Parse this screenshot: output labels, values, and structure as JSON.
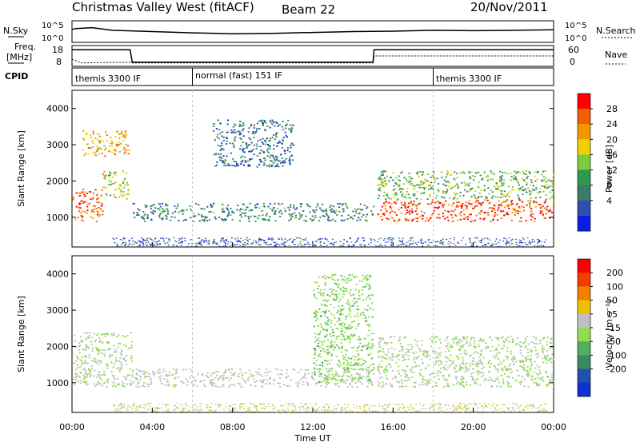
{
  "header": {
    "site": "Christmas Valley West (fitACF)",
    "beam": "Beam 22",
    "date": "20/Nov/2011"
  },
  "summary": {
    "nsky_label": "N.Sky",
    "nsearch_label": "N.Search",
    "freq_label_line1": "Freq.",
    "freq_label_line2": "[MHz]",
    "nave_label": "Nave",
    "cpid_label": "CPID",
    "noise_ticks": [
      "10^5",
      "10^0"
    ],
    "noise_ticks_right": [
      "10^5",
      "10^0"
    ],
    "freq_ticks": [
      "18",
      "8"
    ],
    "nave_ticks": [
      "60",
      "0"
    ],
    "cpid_segments": [
      {
        "label": "themis 3300 IF",
        "start_hour": 0
      },
      {
        "label": "normal (fast) 151 IF",
        "start_hour": 6
      },
      {
        "label": "themis 3300 IF",
        "start_hour": 18
      }
    ],
    "noise_series": [
      {
        "hour": 0.0,
        "log": 3.0
      },
      {
        "hour": 0.2,
        "log": 3.2
      },
      {
        "hour": 1.0,
        "log": 3.4
      },
      {
        "hour": 2.0,
        "log": 2.8
      },
      {
        "hour": 4.0,
        "log": 2.5
      },
      {
        "hour": 6.0,
        "log": 2.2
      },
      {
        "hour": 8.0,
        "log": 2.0
      },
      {
        "hour": 10.0,
        "log": 2.1
      },
      {
        "hour": 12.0,
        "log": 2.3
      },
      {
        "hour": 14.0,
        "log": 2.5
      },
      {
        "hour": 16.0,
        "log": 2.6
      },
      {
        "hour": 18.0,
        "log": 2.8
      },
      {
        "hour": 20.0,
        "log": 2.7
      },
      {
        "hour": 22.0,
        "log": 2.8
      },
      {
        "hour": 24.0,
        "log": 2.9
      }
    ],
    "freq_series": [
      {
        "hour": 0.0,
        "mhz": 16
      },
      {
        "hour": 2.9,
        "mhz": 16
      },
      {
        "hour": 3.0,
        "mhz": 10
      },
      {
        "hour": 15.0,
        "mhz": 10
      },
      {
        "hour": 15.05,
        "mhz": 16
      },
      {
        "hour": 24.0,
        "mhz": 16
      }
    ],
    "nave_series": [
      {
        "hour": 0.0,
        "n": 20
      },
      {
        "hour": 0.5,
        "n": 10
      },
      {
        "hour": 2.9,
        "n": 12
      },
      {
        "hour": 3.0,
        "n": 10
      },
      {
        "hour": 15.0,
        "n": 10
      },
      {
        "hour": 15.05,
        "n": 30
      },
      {
        "hour": 24.0,
        "n": 30
      }
    ]
  },
  "chart_data": [
    {
      "type": "heatmap",
      "name": "power",
      "ylabel": "Slant Range [km]",
      "ylim": [
        180,
        4500
      ],
      "xlim_hours": [
        0,
        24
      ],
      "yticks": [
        "1000",
        "2000",
        "3000",
        "4000"
      ],
      "colorbar": {
        "label": "Power [dB]",
        "ticks": [
          "4",
          "8",
          "12",
          "16",
          "20",
          "24",
          "28"
        ],
        "colors": [
          "#0a1fe6",
          "#3050b0",
          "#3a7a6a",
          "#2f9950",
          "#7acc3a",
          "#f0d000",
          "#f09a00",
          "#f06000",
          "#ff0000"
        ]
      },
      "features": [
        {
          "t0": 0.0,
          "t1": 1.5,
          "r0": 900,
          "r1": 1800,
          "value": "26"
        },
        {
          "t0": 1.5,
          "t1": 2.8,
          "r0": 1500,
          "r1": 2300,
          "value": "18"
        },
        {
          "t0": 0.5,
          "t1": 2.8,
          "r0": 2700,
          "r1": 3400,
          "value": "22"
        },
        {
          "t0": 3.0,
          "t1": 15.0,
          "r0": 900,
          "r1": 1400,
          "value": "10"
        },
        {
          "t0": 7.0,
          "t1": 11.0,
          "r0": 2400,
          "r1": 3700,
          "value": "8"
        },
        {
          "t0": 15.2,
          "t1": 24.0,
          "r0": 900,
          "r1": 1500,
          "value": "28"
        },
        {
          "t0": 15.2,
          "t1": 24.0,
          "r0": 1500,
          "r1": 2300,
          "value": "14"
        }
      ]
    },
    {
      "type": "heatmap",
      "name": "velocity",
      "ylabel": "Slant Range [km]",
      "ylim": [
        180,
        4500
      ],
      "xlim_hours": [
        0,
        24
      ],
      "yticks": [
        "1000",
        "2000",
        "3000",
        "4000"
      ],
      "colorbar": {
        "label": "Velocity [m s⁻¹]",
        "ticks": [
          "200",
          "100",
          "50",
          "15",
          "-15",
          "-50",
          "-100",
          "-200"
        ],
        "colors": [
          "#1030d0",
          "#2050b0",
          "#3a8a60",
          "#50b060",
          "#90dd50",
          "#c0c0c0",
          "#f0c000",
          "#f08000",
          "#f04000",
          "#ff0000"
        ]
      },
      "features": [
        {
          "t0": 0.0,
          "t1": 3.0,
          "r0": 900,
          "r1": 2400,
          "value": "0"
        },
        {
          "t0": 3.0,
          "t1": 15.0,
          "r0": 900,
          "r1": 1400,
          "value": "-15"
        },
        {
          "t0": 12.0,
          "t1": 15.0,
          "r0": 1000,
          "r1": 4000,
          "value": "30"
        },
        {
          "t0": 15.2,
          "t1": 24.0,
          "r0": 900,
          "r1": 2300,
          "value": "0"
        }
      ]
    }
  ],
  "xaxis": {
    "label": "Time UT",
    "ticks": [
      "00:00",
      "04:00",
      "08:00",
      "12:00",
      "16:00",
      "20:00",
      "00:00"
    ]
  }
}
